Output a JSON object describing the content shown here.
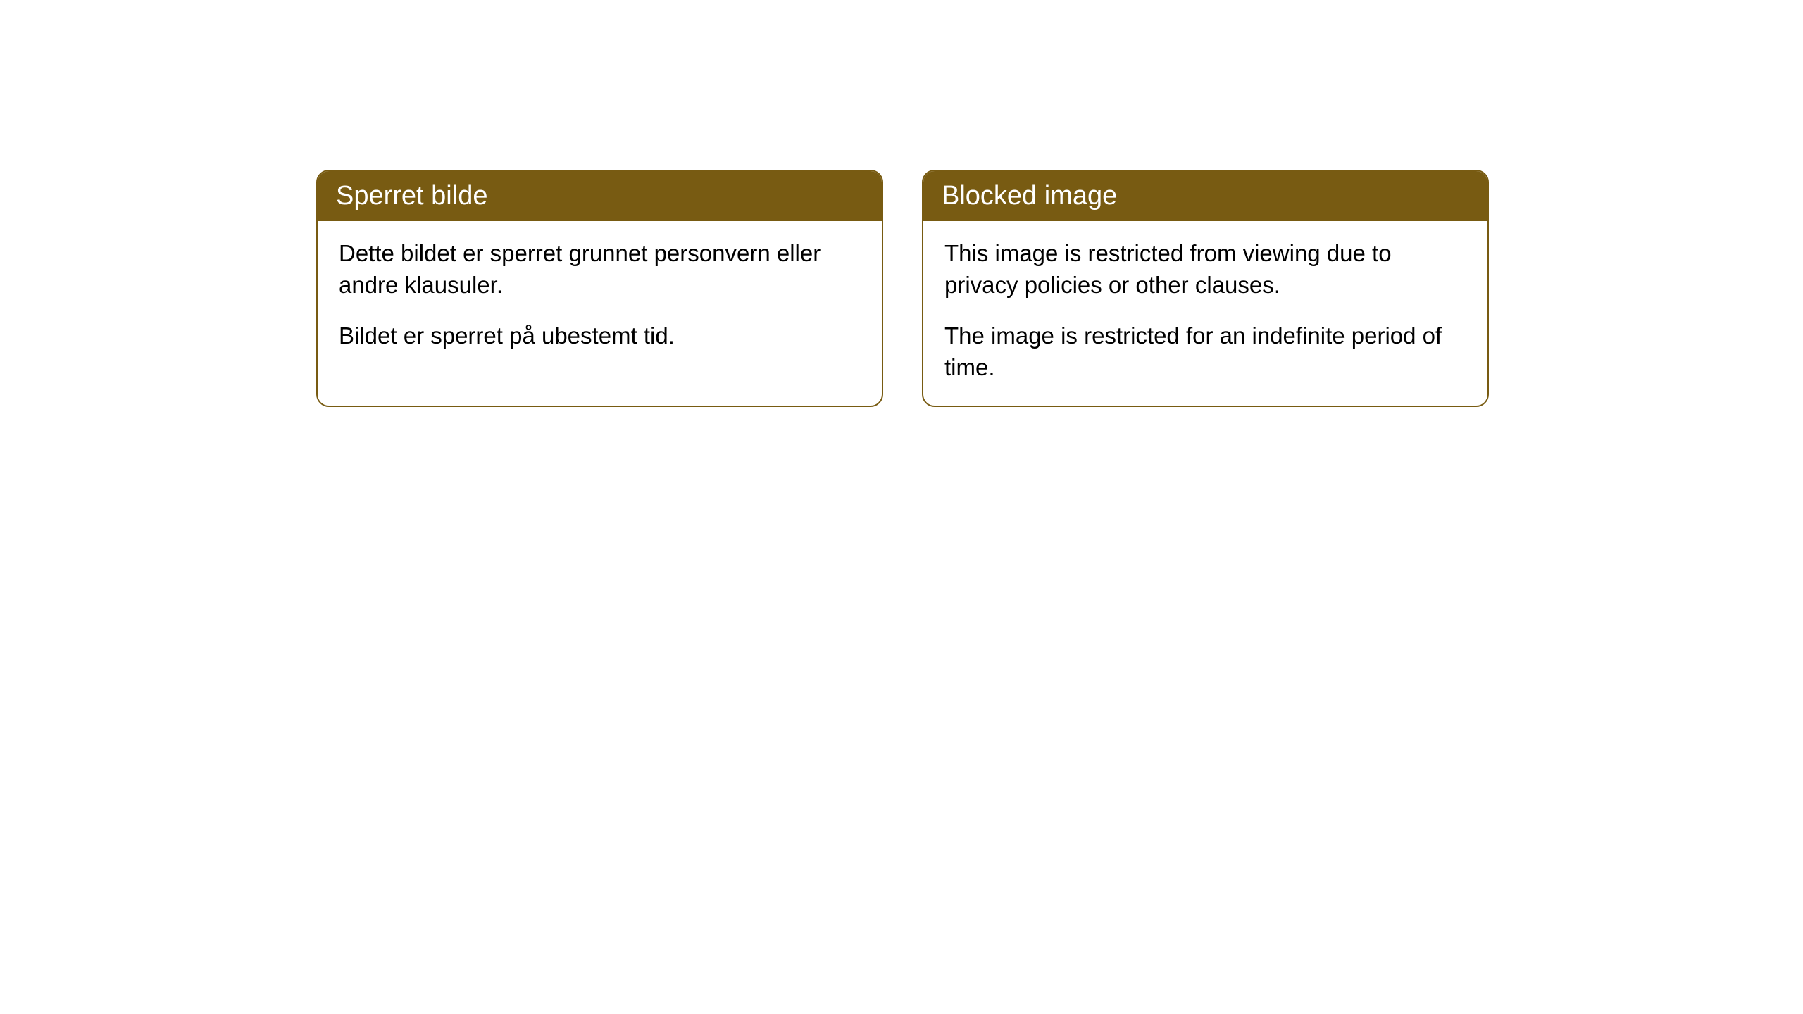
{
  "cards": [
    {
      "title": "Sperret bilde",
      "paragraph1": "Dette bildet er sperret grunnet personvern eller andre klausuler.",
      "paragraph2": "Bildet er sperret på ubestemt tid."
    },
    {
      "title": "Blocked image",
      "paragraph1": "This image is restricted from viewing due to privacy policies or other clauses.",
      "paragraph2": "The image is restricted for an indefinite period of time."
    }
  ],
  "style": {
    "header_background_color": "#785b12",
    "header_text_color": "#ffffff",
    "border_color": "#785b12",
    "body_background_color": "#ffffff",
    "body_text_color": "#000000",
    "border_radius": 18,
    "header_fontsize": 38,
    "body_fontsize": 33
  }
}
